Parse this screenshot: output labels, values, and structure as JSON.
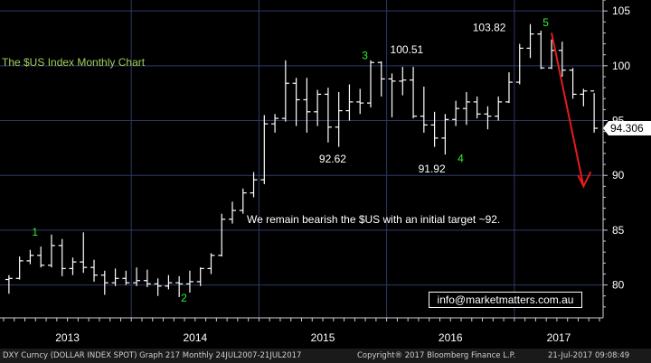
{
  "chart_data": {
    "type": "ohlc",
    "title": "The $US Index Monthly Chart",
    "ylim": [
      77,
      106
    ],
    "yticks": [
      80,
      85,
      90,
      95,
      100,
      105
    ],
    "year_labels": [
      "2013",
      "2014",
      "2015",
      "2016",
      "2017"
    ],
    "last_price": "94.306",
    "price_labels": [
      {
        "text": "100.51",
        "x": 36,
        "y": 100.5
      },
      {
        "text": "92.62",
        "x": 30,
        "y": 93.0
      },
      {
        "text": "91.92",
        "x": 40,
        "y": 91.9
      },
      {
        "text": "103.82",
        "x": 48,
        "y": 103.8
      }
    ],
    "wave_labels": [
      {
        "text": "1",
        "x": 2,
        "y": 84.5
      },
      {
        "text": "2",
        "x": 16,
        "y": 78.5
      },
      {
        "text": "3",
        "x": 33,
        "y": 100.6
      },
      {
        "text": "4",
        "x": 42,
        "y": 91.2
      },
      {
        "text": "5",
        "x": 50,
        "y": 103.6
      }
    ],
    "annotation": "We remain bearish the $US with an initial target ~92.",
    "arrow": {
      "from": {
        "x": 51,
        "y": 103.0
      },
      "to": {
        "x": 54,
        "y": 89.0
      }
    },
    "ohlc": [
      [
        80.5,
        80.9,
        79.2,
        80.6
      ],
      [
        80.6,
        82.6,
        80.5,
        82.2
      ],
      [
        82.2,
        83.2,
        81.9,
        82.7
      ],
      [
        82.7,
        83.5,
        81.6,
        81.8
      ],
      [
        81.8,
        84.6,
        81.6,
        83.6
      ],
      [
        83.6,
        84.2,
        80.8,
        81.5
      ],
      [
        81.5,
        82.5,
        80.9,
        82.1
      ],
      [
        82.1,
        84.8,
        81.1,
        81.6
      ],
      [
        81.6,
        82.3,
        80.3,
        80.9
      ],
      [
        80.9,
        81.3,
        79.1,
        80.2
      ],
      [
        80.2,
        81.5,
        79.9,
        80.6
      ],
      [
        80.6,
        81.3,
        80.0,
        80.2
      ],
      [
        80.2,
        81.6,
        79.9,
        80.4
      ],
      [
        80.4,
        81.4,
        79.8,
        80.1
      ],
      [
        80.1,
        80.6,
        79.0,
        79.9
      ],
      [
        79.9,
        80.9,
        79.6,
        80.2
      ],
      [
        80.2,
        80.8,
        78.9,
        80.1
      ],
      [
        80.1,
        81.3,
        79.3,
        80.3
      ],
      [
        80.3,
        81.6,
        79.9,
        81.5
      ],
      [
        81.5,
        82.9,
        81.0,
        82.7
      ],
      [
        82.7,
        86.5,
        82.6,
        86.0
      ],
      [
        86.0,
        87.6,
        85.6,
        86.8
      ],
      [
        86.8,
        88.8,
        86.5,
        88.4
      ],
      [
        88.4,
        90.3,
        88.0,
        89.6
      ],
      [
        89.6,
        95.5,
        89.2,
        94.7
      ],
      [
        94.7,
        95.6,
        93.9,
        95.2
      ],
      [
        95.2,
        100.5,
        94.9,
        98.4
      ],
      [
        98.4,
        98.9,
        94.5,
        96.9
      ],
      [
        96.9,
        98.9,
        93.9,
        95.8
      ],
      [
        95.8,
        97.8,
        94.5,
        97.4
      ],
      [
        97.4,
        98.0,
        93.0,
        94.4
      ],
      [
        94.4,
        97.6,
        92.6,
        95.9
      ],
      [
        95.9,
        98.3,
        95.0,
        96.7
      ],
      [
        96.7,
        97.9,
        95.6,
        96.6
      ],
      [
        96.6,
        100.5,
        96.2,
        100.3
      ],
      [
        100.3,
        100.4,
        97.2,
        98.8
      ],
      [
        98.8,
        99.3,
        95.3,
        98.6
      ],
      [
        98.6,
        99.9,
        97.3,
        98.7
      ],
      [
        98.7,
        99.9,
        95.2,
        95.4
      ],
      [
        95.4,
        98.1,
        93.9,
        94.6
      ],
      [
        94.6,
        95.8,
        92.6,
        93.4
      ],
      [
        93.4,
        95.6,
        91.9,
        95.1
      ],
      [
        95.1,
        96.8,
        94.5,
        96.1
      ],
      [
        96.1,
        97.6,
        94.6,
        96.7
      ],
      [
        96.7,
        97.2,
        95.2,
        95.6
      ],
      [
        95.6,
        96.3,
        94.2,
        95.4
      ],
      [
        95.4,
        97.2,
        95.0,
        96.7
      ],
      [
        96.7,
        99.4,
        96.6,
        98.5
      ],
      [
        98.5,
        102.0,
        98.3,
        101.6
      ],
      [
        101.6,
        103.8,
        100.7,
        102.9
      ],
      [
        102.9,
        103.2,
        99.7,
        99.8
      ],
      [
        99.8,
        102.4,
        99.7,
        101.4
      ],
      [
        101.4,
        102.2,
        99.0,
        99.6
      ],
      [
        99.6,
        99.8,
        97.0,
        97.4
      ],
      [
        97.4,
        97.9,
        96.3,
        97.7
      ],
      [
        97.7,
        97.5,
        93.9,
        94.3
      ]
    ]
  },
  "email": "info@marketmatters.com.au",
  "footer": {
    "left": "DXY Curncy (DOLLAR INDEX SPOT) Graph 217  Monthly 24JUL2007-21JUL2017",
    "center": "Copyright® 2017 Bloomberg Finance L.P.",
    "right": "21-Jul-2017 09:08:49"
  },
  "colors": {
    "background": "#000000",
    "bars": "#ffffff",
    "grid": "#2e3a66",
    "title": "#9fcf59",
    "wave_labels": "#33ee33",
    "arrow": "#e41b1b"
  }
}
